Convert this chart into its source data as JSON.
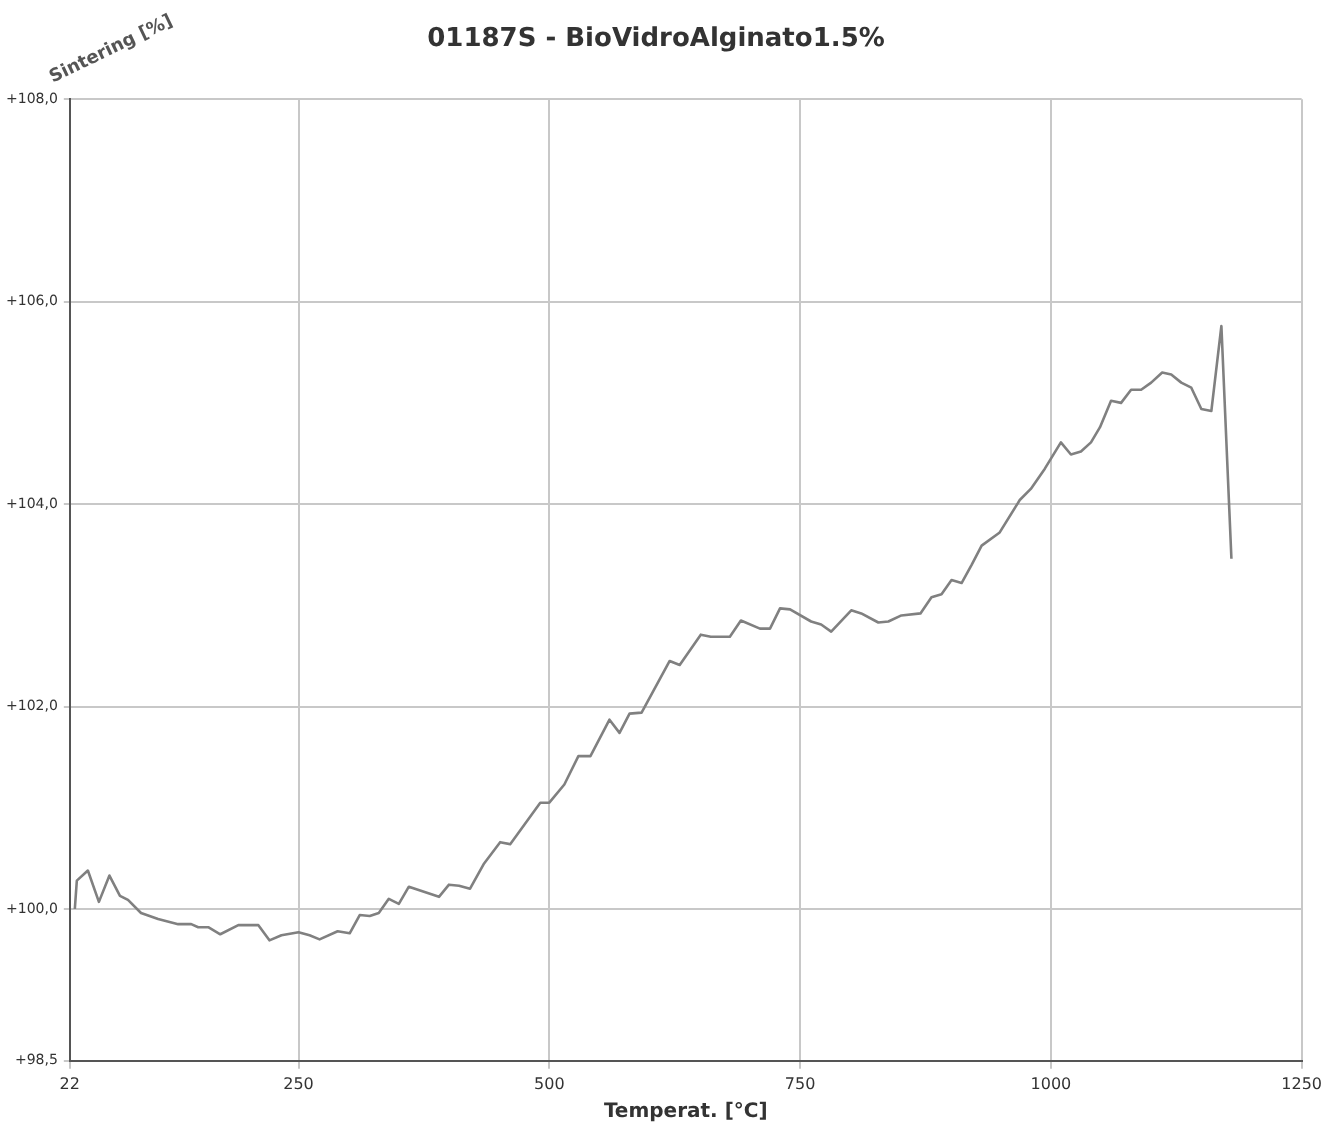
{
  "chart_data": {
    "type": "line",
    "title": "01187S - BioVidroAlginato1.5%",
    "xlabel": "Temperat. [°C]",
    "ylabel": "Sintering [%]",
    "x": [
      27,
      29,
      40,
      51,
      61.5,
      72,
      80,
      93,
      110,
      130,
      143,
      150,
      160,
      172,
      190,
      210,
      221,
      233,
      250,
      261,
      271,
      289,
      301,
      311,
      321,
      330,
      340,
      350,
      360,
      390,
      400,
      410,
      421,
      435,
      451,
      461,
      491,
      500,
      515,
      529,
      541,
      560,
      570,
      580,
      592,
      620,
      630,
      651,
      661,
      680,
      691,
      710,
      720,
      730,
      740,
      761,
      771,
      781,
      801,
      811,
      828,
      838,
      851,
      870,
      881,
      891,
      901,
      911,
      921,
      931,
      949,
      969,
      980,
      994,
      1010,
      1020,
      1030,
      1040,
      1049,
      1060,
      1070,
      1080,
      1090,
      1100,
      1111,
      1120,
      1130,
      1140,
      1150,
      1160,
      1170,
      1180
    ],
    "series": [
      {
        "color": "#808080",
        "values": [
          100.0,
          100.28,
          100.38,
          100.07,
          100.33,
          100.13,
          100.09,
          99.96,
          99.9,
          99.85,
          99.85,
          99.82,
          99.82,
          99.75,
          99.84,
          99.84,
          99.69,
          99.74,
          99.77,
          99.74,
          99.7,
          99.78,
          99.76,
          99.94,
          99.93,
          99.96,
          100.1,
          100.05,
          100.22,
          100.12,
          100.24,
          100.23,
          100.2,
          100.45,
          100.66,
          100.64,
          101.05,
          101.05,
          101.23,
          101.51,
          101.51,
          101.87,
          101.74,
          101.93,
          101.94,
          102.45,
          102.41,
          102.71,
          102.69,
          102.69,
          102.85,
          102.77,
          102.77,
          102.97,
          102.96,
          102.84,
          102.81,
          102.74,
          102.95,
          102.92,
          102.83,
          102.84,
          102.9,
          102.92,
          103.08,
          103.11,
          103.25,
          103.22,
          103.4,
          103.59,
          103.72,
          104.04,
          104.15,
          104.35,
          104.61,
          104.49,
          104.52,
          104.61,
          104.76,
          105.02,
          105.0,
          105.13,
          105.13,
          105.2,
          105.3,
          105.28,
          105.2,
          105.15,
          104.94,
          104.92,
          105.76,
          103.46
        ]
      }
    ],
    "xlim": [
      22,
      1250
    ],
    "xticks": [
      22,
      250,
      500,
      750,
      1000,
      1250
    ],
    "ylim": [
      98.5,
      108
    ],
    "yticks": [
      {
        "value": 98.5,
        "label": "+98,5"
      },
      {
        "value": 100,
        "label": "+100,0"
      },
      {
        "value": 102,
        "label": "+102,0"
      },
      {
        "value": 104,
        "label": "+104,0"
      },
      {
        "value": 106,
        "label": "+106,0"
      },
      {
        "value": 108,
        "label": "+108,0"
      }
    ],
    "grid": true,
    "legend": false,
    "marker": "none",
    "line_style": "solid"
  }
}
